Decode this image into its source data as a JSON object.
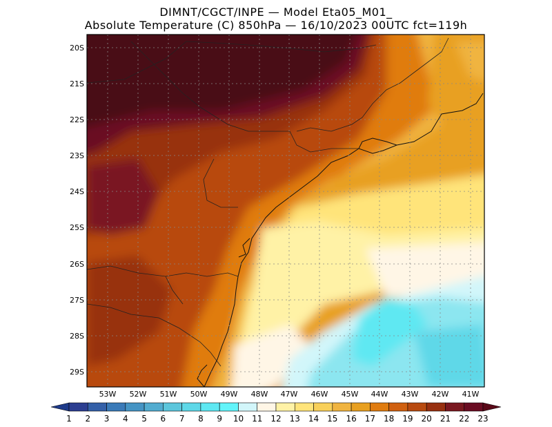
{
  "header": {
    "line1": "DIMNT/CGCT/INPE —  Model Eta05_M01_",
    "line2": "Absolute Temperature (C) 850hPa —  16/10/2023 00UTC fct=119h"
  },
  "axes": {
    "lat_labels": [
      "20S",
      "21S",
      "22S",
      "23S",
      "24S",
      "25S",
      "26S",
      "27S",
      "28S",
      "29S"
    ],
    "lon_labels": [
      "53W",
      "52W",
      "51W",
      "50W",
      "49W",
      "48W",
      "47W",
      "46W",
      "45W",
      "44W",
      "43W",
      "42W",
      "41W"
    ]
  },
  "colorbar": {
    "labels": [
      "1",
      "2",
      "3",
      "4",
      "5",
      "6",
      "7",
      "8",
      "9",
      "10",
      "11",
      "12",
      "13",
      "14",
      "15",
      "16",
      "17",
      "18",
      "19",
      "20",
      "21",
      "22",
      "23"
    ],
    "colors": [
      "#2c3e91",
      "#3460a8",
      "#3a7ab8",
      "#4594c4",
      "#52acd0",
      "#5cc6dc",
      "#5ed8e8",
      "#5ee8f2",
      "#62f4fa",
      "#d2f6fa",
      "#fff6e6",
      "#fff2a6",
      "#ffe47a",
      "#f8d05a",
      "#f0b440",
      "#e8a020",
      "#e07c10",
      "#d06010",
      "#b84a10",
      "#983010",
      "#7a1820",
      "#6a0c22"
    ],
    "arrow_left": "#1e3a8a",
    "arrow_right": "#5a0818"
  }
}
